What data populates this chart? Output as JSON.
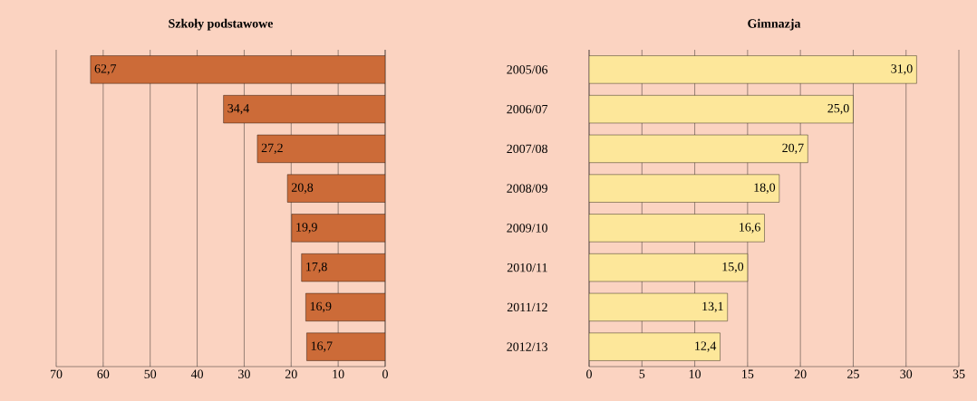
{
  "chart_data": [
    {
      "type": "bar",
      "orientation": "horizontal",
      "title": "Szkoły podstawowe",
      "categories": [
        "2005/06",
        "2006/07",
        "2007/08",
        "2008/09",
        "2009/10",
        "2010/11",
        "2011/12",
        "2012/13"
      ],
      "series": [
        {
          "color": "#cc6b38",
          "values": [
            62.7,
            34.4,
            27.2,
            20.8,
            19.9,
            17.8,
            16.9,
            16.7
          ],
          "value_labels": [
            "62,7",
            "34,4",
            "27,2",
            "20,8",
            "19,9",
            "17,8",
            "16,9",
            "16,7"
          ]
        }
      ],
      "xlim": [
        70,
        0
      ],
      "xticks": [
        70,
        60,
        50,
        40,
        30,
        20,
        10,
        0
      ],
      "grid": "x",
      "tick_labels": "x"
    },
    {
      "type": "bar",
      "orientation": "horizontal",
      "title": "Gimnazja",
      "categories": [
        "2005/06",
        "2006/07",
        "2007/08",
        "2008/09",
        "2009/10",
        "2010/11",
        "2011/12",
        "2012/13"
      ],
      "series": [
        {
          "color": "#fde79a",
          "values": [
            31.0,
            25.0,
            20.7,
            18.0,
            16.6,
            15.0,
            13.1,
            12.4
          ],
          "value_labels": [
            "31,0",
            "25,0",
            "20,7",
            "18,0",
            "16,6",
            "15,0",
            "13,1",
            "12,4"
          ]
        }
      ],
      "xlim": [
        0,
        35
      ],
      "xticks": [
        0,
        5,
        10,
        15,
        20,
        25,
        30,
        35
      ],
      "grid": "x"
    }
  ]
}
